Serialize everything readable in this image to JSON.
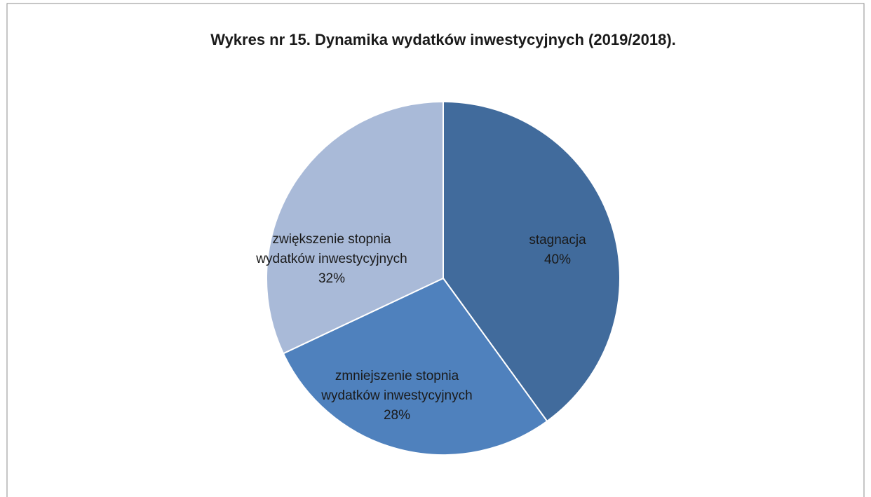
{
  "chart_data": {
    "type": "pie",
    "title": "Wykres nr 15. Dynamika wydatków inwestycyjnych (2019/2018).",
    "categories": [
      "stagnacja",
      "zmniejszenie stopnia wydatków inwestycyjnych",
      "zwiększenie stopnia wydatków inwestycyjnych"
    ],
    "values": [
      40,
      28,
      32
    ],
    "value_labels": [
      "40%",
      "28%",
      "32%"
    ],
    "colors": [
      "#416b9c",
      "#4f81bd",
      "#a9bad8"
    ]
  }
}
